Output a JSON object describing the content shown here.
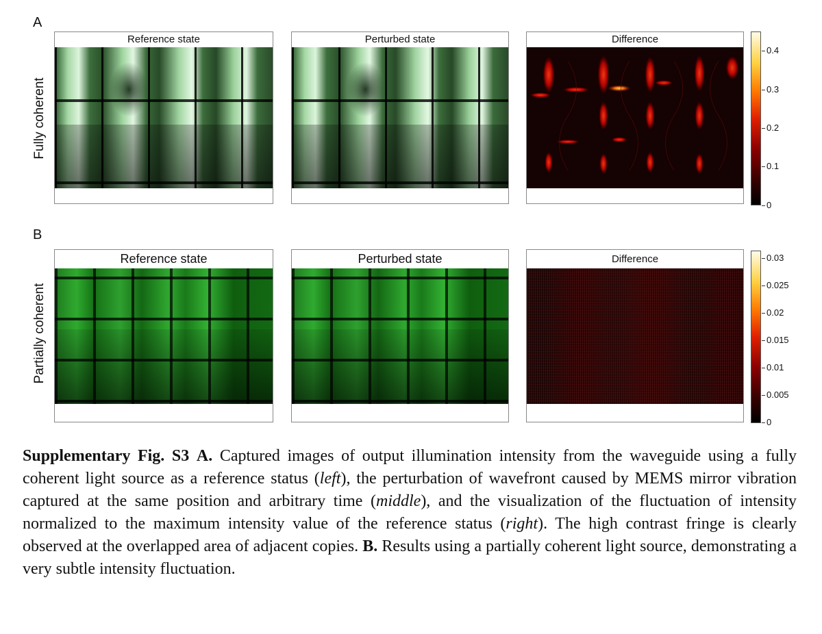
{
  "panels": {
    "a": {
      "letter": "A",
      "row_label": "Fully coherent",
      "titles": [
        "Reference state",
        "Perturbed state",
        "Difference"
      ],
      "colorbar_ticks": [
        "0.4",
        "0.3",
        "0.2",
        "0.1",
        "0"
      ]
    },
    "b": {
      "letter": "B",
      "row_label": "Partially coherent",
      "titles": [
        "Reference state",
        "Perturbed state",
        "Difference"
      ],
      "colorbar_ticks": [
        "0.03",
        "0.025",
        "0.02",
        "0.015",
        "0.01",
        "0.005",
        "0"
      ]
    }
  },
  "caption": {
    "label": "Supplementary Fig. S3",
    "a_label": "A.",
    "a_text_1": " Captured images of output illumination intensity from the waveguide using a fully coherent light source as a reference status (",
    "left": "left",
    "a_text_2": "), the perturbation of wavefront caused by MEMS mirror vibration captured at the same position and arbitrary time (",
    "middle": "middle",
    "a_text_3": "), and the visualization of the fluctuation of intensity normalized to the maximum intensity value of the reference status (",
    "right": "right",
    "a_text_4": ").  The high contrast fringe is clearly observed at the overlapped area of adjacent copies. ",
    "b_label": "B.",
    "b_text": " Results using a partially coherent light source, demonstrating a very subtle intensity fluctuation."
  }
}
